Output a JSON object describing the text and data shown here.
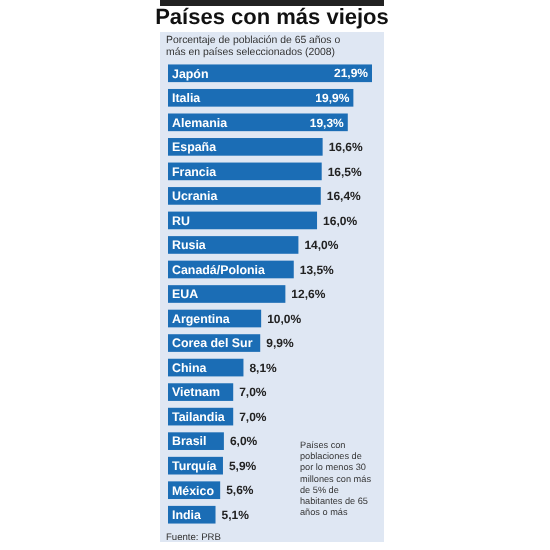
{
  "chart_data": {
    "type": "bar",
    "orientation": "horizontal",
    "title": "Países con más viejos",
    "subtitle": "Porcentaje de población de 65 años o más en países seleccionados (2008)",
    "categories": [
      "Japón",
      "Italia",
      "Alemania",
      "España",
      "Francia",
      "Ucrania",
      "RU",
      "Rusia",
      "Canadá/Polonia",
      "EUA",
      "Argentina",
      "Corea del Sur",
      "China",
      "Vietnam",
      "Tailandia",
      "Brasil",
      "Turquía",
      "México",
      "India"
    ],
    "values": [
      21.9,
      19.9,
      19.3,
      16.6,
      16.5,
      16.4,
      16.0,
      14.0,
      13.5,
      12.6,
      10.0,
      9.9,
      8.1,
      7.0,
      7.0,
      6.0,
      5.9,
      5.6,
      5.1
    ],
    "value_labels": [
      "21,9%",
      "19,9%",
      "19,3%",
      "16,6%",
      "16,5%",
      "16,4%",
      "16,0%",
      "14,0%",
      "13,5%",
      "12,6%",
      "10,0%",
      "9,9%",
      "8,1%",
      "7,0%",
      "7,0%",
      "6,0%",
      "5,9%",
      "5,6%",
      "5,1%"
    ],
    "color": "#1b6db5",
    "annotations": [
      "Países con poblaciones de por lo menos 30 millones con más de 5% de habitantes de 65 años o más",
      "Fuente: PRB"
    ]
  }
}
